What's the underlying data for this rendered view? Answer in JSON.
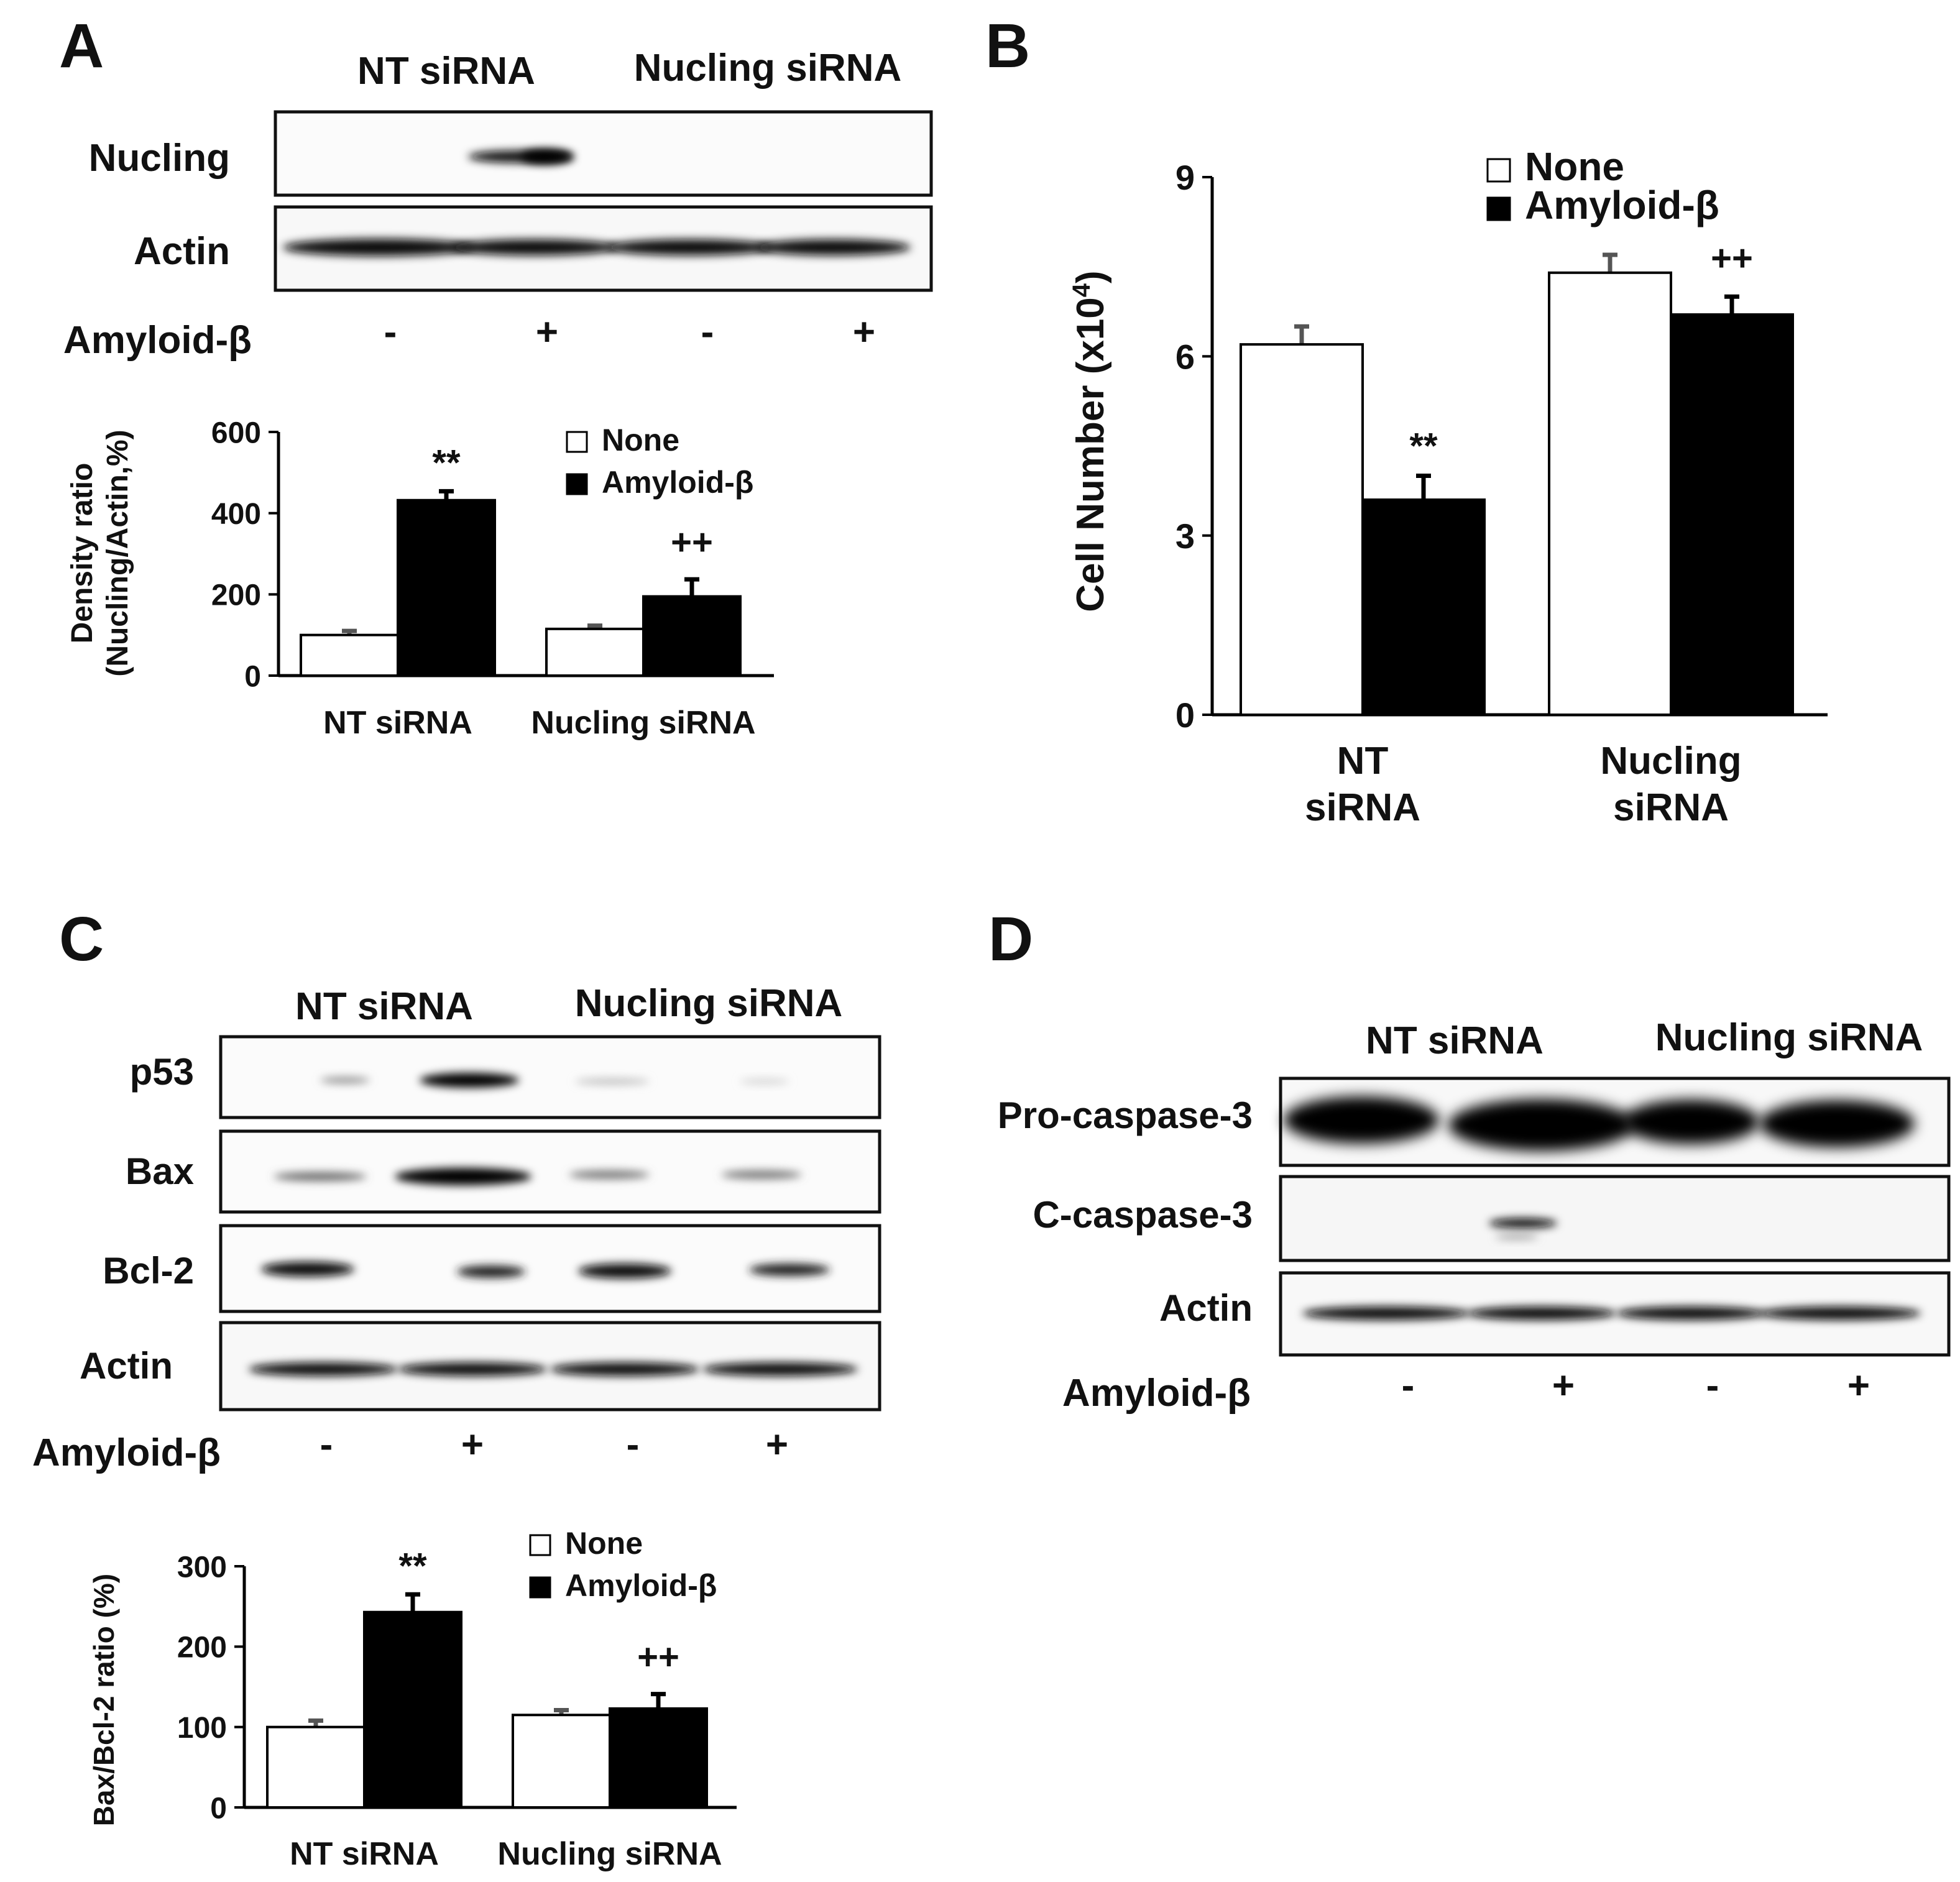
{
  "figure": {
    "panel_labels": [
      "A",
      "B",
      "C",
      "D"
    ]
  },
  "groups": [
    "NT siRNA",
    "Nucling siRNA"
  ],
  "groups_wrapped": [
    [
      "NT",
      "siRNA"
    ],
    [
      "Nucling",
      "siRNA"
    ]
  ],
  "treatment_label": "Amyloid-β",
  "treatment_signs": [
    "-",
    "+",
    "-",
    "+"
  ],
  "legend": [
    "None",
    "Amyloid-β"
  ],
  "colors": {
    "none": "#ffffff",
    "amyloid": "#000000",
    "axis": "#000000",
    "error": "#555555"
  },
  "blots": {
    "A": {
      "rows": [
        "Nucling",
        "Actin"
      ]
    },
    "C": {
      "rows": [
        "p53",
        "Bax",
        "Bcl-2",
        "Actin"
      ]
    },
    "D": {
      "rows": [
        "Pro-caspase-3",
        "C-caspase-3",
        "Actin"
      ]
    }
  },
  "chart_data": [
    {
      "id": "A",
      "type": "bar",
      "title": "",
      "xlabel": "",
      "ylabel": "Density ratio",
      "ylabel2": "(Nucling/Actin,%)",
      "categories": [
        "NT siRNA",
        "Nucling siRNA"
      ],
      "ylim": [
        0,
        600
      ],
      "yticks": [
        0,
        200,
        400,
        600
      ],
      "series": [
        {
          "name": "None",
          "values": [
            100,
            115
          ],
          "errors": [
            10,
            8
          ]
        },
        {
          "name": "Amyloid-β",
          "values": [
            432,
            195
          ],
          "errors": [
            22,
            42
          ]
        }
      ],
      "annotations": [
        "**",
        "++"
      ],
      "legend_position": "top-right"
    },
    {
      "id": "B",
      "type": "bar",
      "title": "",
      "xlabel": "",
      "ylabel": "Cell Number (x10",
      "ylabel_exponent": "4",
      "ylabel_close": ")",
      "categories": [
        "NT siRNA",
        "Nucling siRNA"
      ],
      "ylim": [
        0,
        9
      ],
      "yticks": [
        0,
        3,
        6,
        9
      ],
      "series": [
        {
          "name": "None",
          "values": [
            6.2,
            7.4
          ],
          "errors": [
            0.3,
            0.3
          ]
        },
        {
          "name": "Amyloid-β",
          "values": [
            3.6,
            6.7
          ],
          "errors": [
            0.4,
            0.3
          ]
        }
      ],
      "annotations": [
        "**",
        "++"
      ],
      "legend_position": "top-center"
    },
    {
      "id": "C",
      "type": "bar",
      "title": "",
      "xlabel": "",
      "ylabel": "Bax/Bcl-2 ratio (%)",
      "categories": [
        "NT siRNA",
        "Nucling siRNA"
      ],
      "ylim": [
        0,
        300
      ],
      "yticks": [
        0,
        100,
        200,
        300
      ],
      "series": [
        {
          "name": "None",
          "values": [
            100,
            115
          ],
          "errors": [
            8,
            6
          ]
        },
        {
          "name": "Amyloid-β",
          "values": [
            243,
            123
          ],
          "errors": [
            22,
            18
          ]
        }
      ],
      "annotations": [
        "**",
        "++"
      ],
      "legend_position": "top-right"
    }
  ]
}
